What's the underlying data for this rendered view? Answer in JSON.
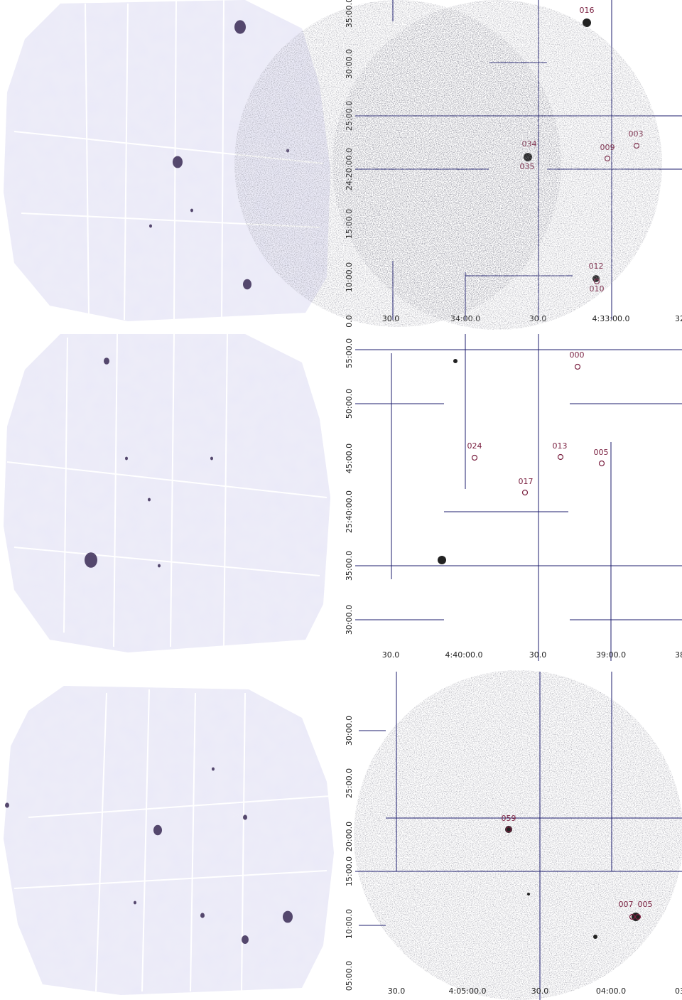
{
  "panels": [
    {
      "y_labels": [
        "35:00.0",
        "30:00.0",
        "25:00.0",
        "24:20:00.0",
        "15:00.0",
        "10:00.0",
        "0.0"
      ],
      "x_labels": [
        "30.0",
        "34:00.0",
        "30.0",
        "4:33:00.0",
        "32:"
      ],
      "sources": [
        "016",
        "003",
        "009",
        "034",
        "035",
        "012",
        "010"
      ]
    },
    {
      "y_labels": [
        "55:00.0",
        "50:00.0",
        "45:00.0",
        "25:40:00.0",
        "35:00.0",
        "30:00.0"
      ],
      "x_labels": [
        "30.0",
        "4:40:00.0",
        "30.0",
        "39:00.0",
        "38:"
      ],
      "sources": [
        "000",
        "024",
        "013",
        "005",
        "017"
      ]
    },
    {
      "y_labels": [
        "30:00.0",
        "25:00.0",
        "20:00.0",
        "15:00.0",
        "10:00.0",
        "05:00.0"
      ],
      "x_labels": [
        "30.0",
        "4:05:00.0",
        "30.0",
        "04:00.0",
        "03:"
      ],
      "sources": [
        "059",
        "007",
        "005"
      ]
    }
  ]
}
